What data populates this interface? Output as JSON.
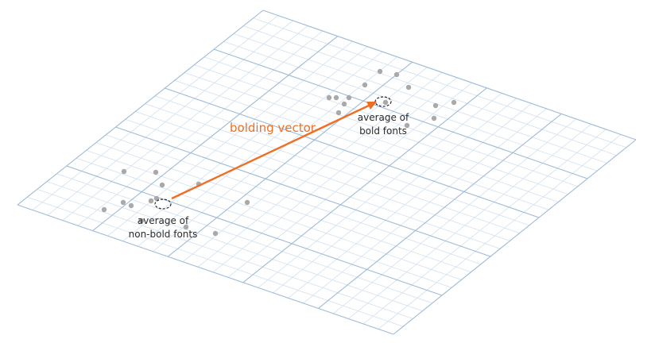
{
  "colors": {
    "grid_minor": "#d2e0ef",
    "grid_major": "#9fbad8",
    "point": "#a9a9a9",
    "vector": "#ee6f23",
    "marker": "#2b2b2b",
    "text": "#2b2b2b"
  },
  "labels": {
    "vector": "bolding vector",
    "nonbold_line1": "average of",
    "nonbold_line2": "non-bold fonts",
    "bold_line1": "average of",
    "bold_line2": "bold fonts"
  }
}
